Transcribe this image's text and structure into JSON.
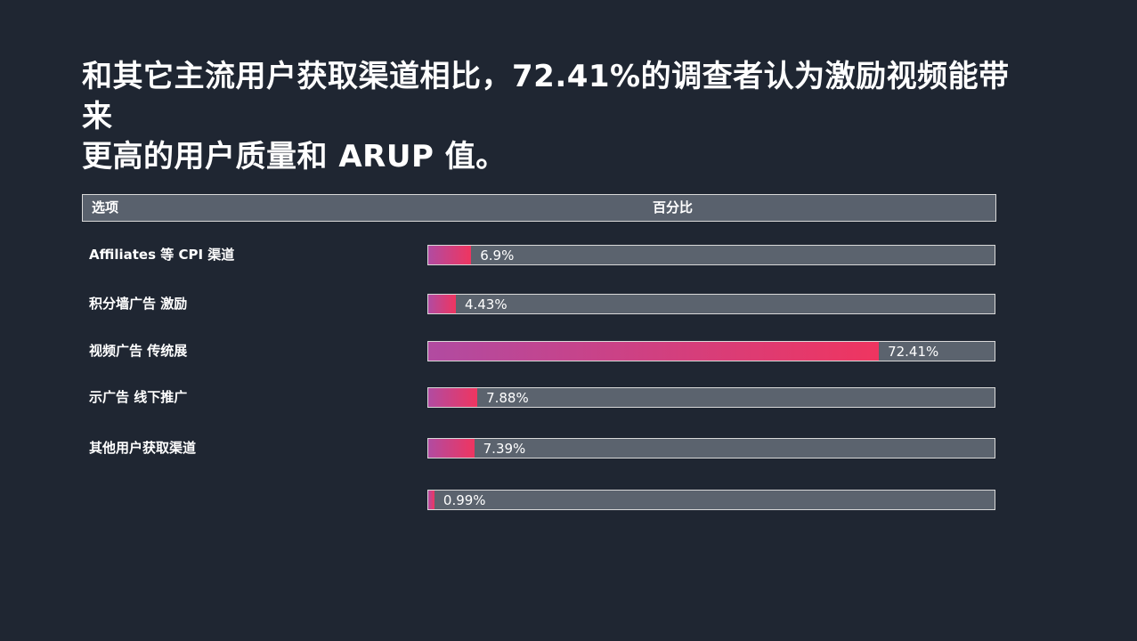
{
  "title": {
    "full": "和其它主流用户获取渠道相比，72.41%的调查者认为激励视频能带来更高的用户质量和 ARUP 值。",
    "line1": "和其它主流用户获取渠道相比，72.41%的调查者认为激励视频能带来",
    "line2": "更高的用户质量和 ARUP 值。"
  },
  "table": {
    "col_option": "选项",
    "col_percent": "百分比"
  },
  "colors": {
    "background": "#1f2632",
    "track_gray": "#5b636e",
    "header_gray": "#59616d",
    "bar_gradient_start": "#b14ba1",
    "bar_gradient_end": "#ef3560",
    "border": "#d9d9d9",
    "text": "#ffffff"
  },
  "chart_data": {
    "type": "bar",
    "orientation": "horizontal",
    "title": "和其它主流用户获取渠道相比，72.41%的调查者认为激励视频能带来更高的用户质量和 ARUP 值。",
    "xlabel": "百分比",
    "ylabel": "选项",
    "categories": [
      "Affiliates 等 CPI 渠道",
      "积分墙广告 激励",
      "视频广告 传统展",
      "示广告 线下推广",
      "其他用户获取渠道",
      ""
    ],
    "values": [
      6.9,
      4.43,
      72.41,
      7.88,
      7.39,
      0.99
    ],
    "display_values": [
      "6.9%",
      "4.43%",
      "72.41%",
      "7.88%",
      "7.39%",
      "0.99%"
    ],
    "xlim": [
      0,
      91
    ],
    "grid": false,
    "legend": false
  }
}
